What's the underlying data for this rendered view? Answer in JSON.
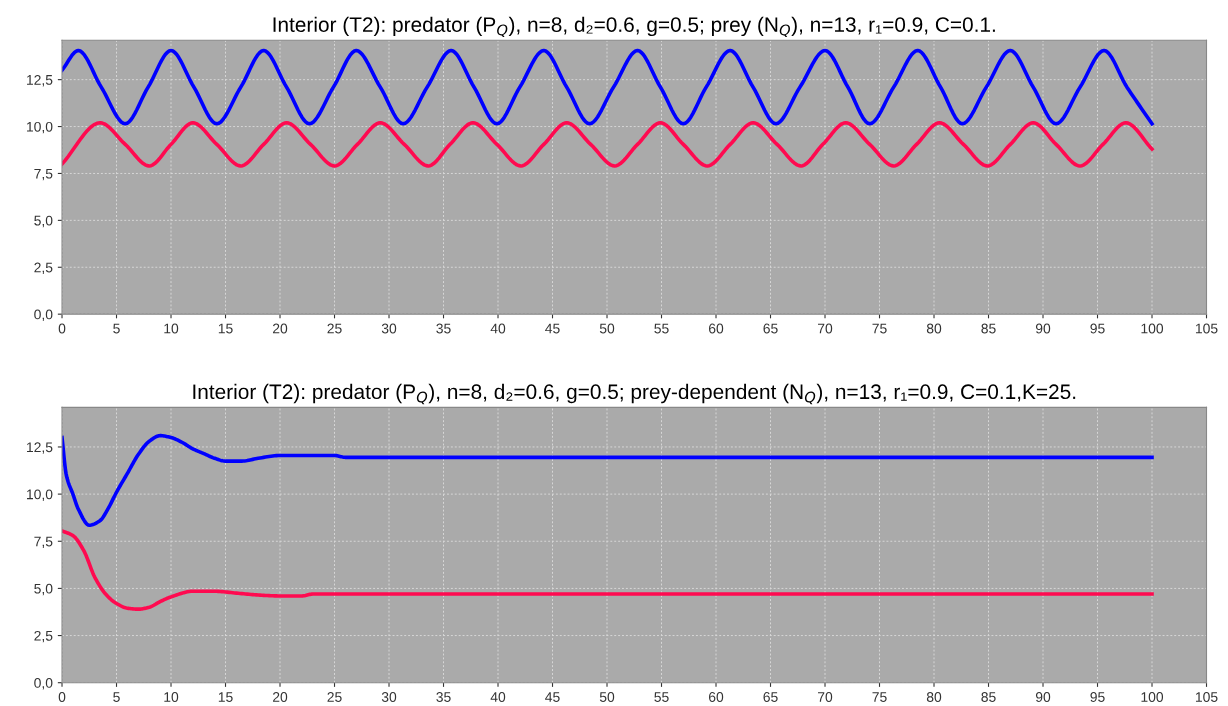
{
  "chart_data": [
    {
      "type": "line",
      "title": "Interior (T2): predator (P$_{Q}$), n=8, d₂=0.6, g=0.5; prey (N$_{Q}$), n=13, r₁=0.9, C=0.1.",
      "xlim": [
        0,
        105
      ],
      "ylim": [
        0,
        14.6
      ],
      "xticks": [
        0,
        5,
        10,
        15,
        20,
        25,
        30,
        35,
        40,
        45,
        50,
        55,
        60,
        65,
        70,
        75,
        80,
        85,
        90,
        95,
        100,
        105
      ],
      "yticks": [
        {
          "value": 0,
          "label": "0,0"
        },
        {
          "value": 2.5,
          "label": "2,5"
        },
        {
          "value": 5,
          "label": "5,0"
        },
        {
          "value": 7.5,
          "label": "7,5"
        },
        {
          "value": 10,
          "label": "10,0"
        },
        {
          "value": 12.5,
          "label": "12,5"
        }
      ],
      "grid": true,
      "line_style": "solid",
      "series": [
        {
          "color": "#0000ff",
          "x": [
            0,
            1.5,
            3.6,
            5.8,
            7.9,
            10,
            12.1,
            14.2,
            16.4,
            18.5,
            20.6,
            22.7,
            24.9,
            27,
            29.2,
            31.3,
            33.5,
            35.7,
            37.8,
            39.9,
            42,
            44.2,
            46.3,
            48.4,
            50.6,
            52.8,
            54.9,
            57,
            59.1,
            61.3,
            63.4,
            65.5,
            67.7,
            70,
            72.1,
            74.1,
            76.3,
            78.5,
            80.6,
            82.6,
            84.8,
            87,
            89.1,
            91.2,
            93.4,
            95.6,
            97.7,
            100
          ],
          "values": [
            13.0,
            14.05,
            12.1,
            10.15,
            12.1,
            14.05,
            12.1,
            10.15,
            12.1,
            14.05,
            12.1,
            10.15,
            12.1,
            14.05,
            12.1,
            10.15,
            12.1,
            14.05,
            12.1,
            10.15,
            12.1,
            14.05,
            12.1,
            10.15,
            12.1,
            14.05,
            12.1,
            10.15,
            12.1,
            14.05,
            12.1,
            10.15,
            12.1,
            14.05,
            12.1,
            10.15,
            12.1,
            14.05,
            12.1,
            10.15,
            12.1,
            14.05,
            12.1,
            10.15,
            12.1,
            14.05,
            12.1,
            10.15
          ]
        },
        {
          "color": "#ff0a50",
          "x": [
            0,
            3.5,
            5.8,
            8,
            10,
            12,
            14.2,
            16.4,
            18.5,
            20.6,
            22.8,
            25,
            27.1,
            29.2,
            31.4,
            33.6,
            35.6,
            37.7,
            39.9,
            42.1,
            44.2,
            46.3,
            48.5,
            50.7,
            52.8,
            54.9,
            57,
            59.2,
            61.3,
            63.4,
            65.6,
            67.8,
            69.8,
            71.9,
            74.1,
            76.3,
            78.4,
            80.5,
            82.7,
            84.9,
            87,
            89.1,
            91.2,
            93.4,
            95.5,
            97.6,
            100
          ],
          "values": [
            8.0,
            10.2,
            9.05,
            7.9,
            9.05,
            10.2,
            9.05,
            7.9,
            9.05,
            10.2,
            9.05,
            7.9,
            9.05,
            10.2,
            9.05,
            7.9,
            9.05,
            10.2,
            9.05,
            7.9,
            9.05,
            10.2,
            9.05,
            7.9,
            9.05,
            10.2,
            9.05,
            7.9,
            9.05,
            10.2,
            9.05,
            7.9,
            9.05,
            10.2,
            9.05,
            7.9,
            9.05,
            10.2,
            9.05,
            7.9,
            9.05,
            10.2,
            9.05,
            7.9,
            9.05,
            10.2,
            8.8
          ]
        }
      ]
    },
    {
      "type": "line",
      "title": "Interior (T2): predator (P$_{Q}$), n=8, d₂=0.6, g=0.5; prey-dependent (N$_{Q}$), n=13, r₁=0.9, C=0.1,K=25.",
      "xlim": [
        0,
        105
      ],
      "ylim": [
        0,
        14.6
      ],
      "xticks": [
        0,
        5,
        10,
        15,
        20,
        25,
        30,
        35,
        40,
        45,
        50,
        55,
        60,
        65,
        70,
        75,
        80,
        85,
        90,
        95,
        100,
        105
      ],
      "yticks": [
        {
          "value": 0,
          "label": "0,0"
        },
        {
          "value": 2.5,
          "label": "2,5"
        },
        {
          "value": 5,
          "label": "5,0"
        },
        {
          "value": 7.5,
          "label": "7,5"
        },
        {
          "value": 10,
          "label": "10,0"
        },
        {
          "value": 12.5,
          "label": "12,5"
        }
      ],
      "grid": true,
      "line_style": "solid",
      "series": [
        {
          "color": "#0000ff",
          "x": [
            0,
            0.4,
            1,
            1.5,
            2.5,
            3.5,
            4.2,
            5,
            6,
            7,
            8,
            9,
            10,
            11,
            12,
            13,
            14,
            15,
            16.5,
            18,
            20,
            25,
            26,
            100
          ],
          "values": [
            13.0,
            11.0,
            10.0,
            9.2,
            8.35,
            8.6,
            9.2,
            10.1,
            11.1,
            12.1,
            12.8,
            13.1,
            13.0,
            12.75,
            12.4,
            12.15,
            11.9,
            11.75,
            11.75,
            11.9,
            12.05,
            12.05,
            11.95,
            11.95
          ]
        },
        {
          "color": "#ff0a50",
          "x": [
            0,
            1,
            2,
            3,
            4,
            5,
            6,
            7,
            8,
            9,
            10,
            12,
            14,
            16,
            18,
            20,
            22,
            23,
            100
          ],
          "values": [
            8.05,
            7.8,
            7.0,
            5.6,
            4.7,
            4.2,
            3.95,
            3.9,
            4.0,
            4.3,
            4.55,
            4.85,
            4.85,
            4.75,
            4.65,
            4.6,
            4.6,
            4.7,
            4.7
          ]
        }
      ]
    }
  ]
}
